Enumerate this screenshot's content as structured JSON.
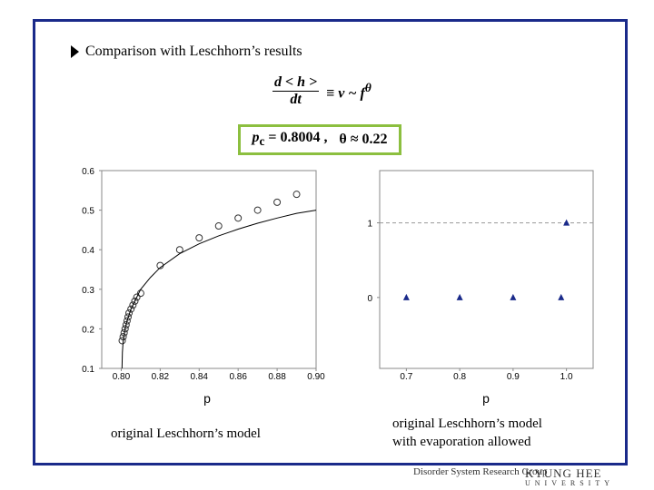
{
  "slide": {
    "title": "Comparison with Leschhorn’s results",
    "formula_num": "d < h >",
    "formula_den": "dt",
    "formula_rest": "≡ v ~ f",
    "formula_exp": "θ",
    "pc_text": "p",
    "pc_sub": "c",
    "pc_value": "= 0.8004 ,",
    "theta_text": "θ ≈ 0.22",
    "caption_left": "original Leschhorn’s model",
    "caption_right_line1": "original Leschhorn’s model",
    "caption_right_line2": "with evaporation allowed",
    "logo_left": "Disorder System Research Group",
    "logo_right": "KYUNG HEE",
    "logo_right_sub": "UNIVERSITY"
  },
  "chart_data": [
    {
      "type": "scatter",
      "xlabel": "p",
      "ylabel": "",
      "xlim": [
        0.79,
        0.9
      ],
      "ylim": [
        0.1,
        0.6
      ],
      "xticks": [
        "0.80",
        "0.82",
        "0.84",
        "0.86",
        "0.88",
        "0.90"
      ],
      "yticks": [
        "0.1",
        "0.2",
        "0.3",
        "0.4",
        "0.5",
        "0.6"
      ],
      "series": [
        {
          "marker": "circle",
          "x": [
            0.8005,
            0.801,
            0.8015,
            0.802,
            0.8025,
            0.803,
            0.8035,
            0.804,
            0.805,
            0.806,
            0.807,
            0.808,
            0.81,
            0.82,
            0.83,
            0.84,
            0.85,
            0.86,
            0.87,
            0.88,
            0.89
          ],
          "y": [
            0.17,
            0.18,
            0.19,
            0.2,
            0.21,
            0.22,
            0.23,
            0.24,
            0.25,
            0.26,
            0.27,
            0.28,
            0.29,
            0.36,
            0.4,
            0.43,
            0.46,
            0.48,
            0.5,
            0.52,
            0.54
          ]
        },
        {
          "marker": "line",
          "x": [
            0.8004,
            0.8006,
            0.801,
            0.802,
            0.803,
            0.805,
            0.808,
            0.81,
            0.815,
            0.82,
            0.83,
            0.84,
            0.85,
            0.86,
            0.87,
            0.88,
            0.89,
            0.9
          ],
          "y": [
            0.1,
            0.14,
            0.17,
            0.2,
            0.22,
            0.25,
            0.28,
            0.3,
            0.33,
            0.355,
            0.39,
            0.415,
            0.435,
            0.452,
            0.467,
            0.48,
            0.492,
            0.5
          ]
        }
      ]
    },
    {
      "type": "scatter",
      "xlabel": "p",
      "ylabel": "",
      "xlim": [
        0.65,
        1.05
      ],
      "ylim": [
        -0.95,
        1.7
      ],
      "xticks": [
        "0.7",
        "0.8",
        "0.9",
        "1.0"
      ],
      "yticks": [
        "0",
        "1"
      ],
      "hlines": [
        1
      ],
      "series": [
        {
          "marker": "triangle",
          "color": "#1a2a8a",
          "x": [
            0.7,
            0.8,
            0.9,
            0.99,
            1.0
          ],
          "y": [
            0,
            0,
            0,
            0,
            1
          ]
        }
      ]
    }
  ]
}
